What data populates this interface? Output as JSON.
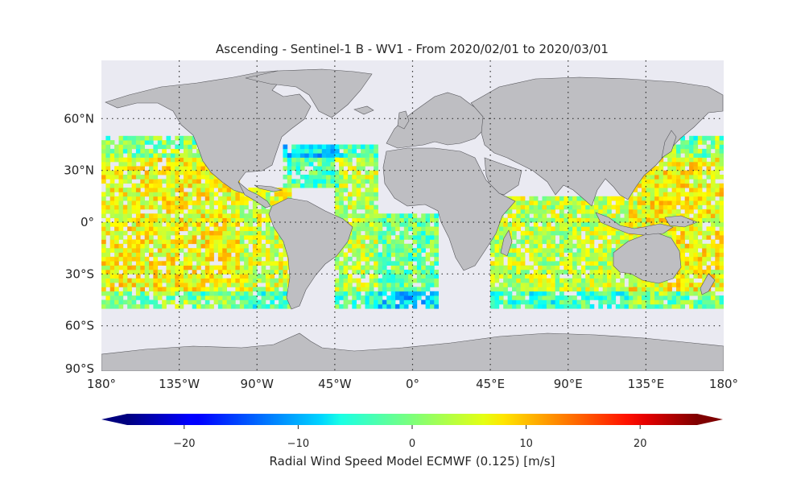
{
  "title": "Ascending - Sentinel-1 B - WV1 - From 2020/02/01 to 2020/03/01",
  "map": {
    "projection": "plate-carree",
    "lon_range": [
      -180,
      180
    ],
    "lat_range": [
      -90,
      90
    ],
    "ocean_color": "#eaeaf2",
    "land_color": "#bebec2",
    "gridlines": "dotted",
    "lon_ticks": [
      {
        "value": -180,
        "label": "180°"
      },
      {
        "value": -135,
        "label": "135°W"
      },
      {
        "value": -90,
        "label": "90°W"
      },
      {
        "value": -45,
        "label": "45°W"
      },
      {
        "value": 0,
        "label": "0°"
      },
      {
        "value": 45,
        "label": "45°E"
      },
      {
        "value": 90,
        "label": "90°E"
      },
      {
        "value": 135,
        "label": "135°E"
      },
      {
        "value": 180,
        "label": "180°"
      }
    ],
    "lat_ticks": [
      {
        "value": 60,
        "label": "60°N"
      },
      {
        "value": 30,
        "label": "30°N"
      },
      {
        "value": 0,
        "label": "0°"
      },
      {
        "value": -30,
        "label": "30°S"
      },
      {
        "value": -60,
        "label": "60°S"
      },
      {
        "value": -90,
        "label": "90°S"
      }
    ]
  },
  "chart_data": {
    "type": "heatmap",
    "variable": "Radial Wind Speed Model ECMWF (0.125) [m/s]",
    "colormap": "jet",
    "vmin": -25,
    "vmax": 25,
    "coverage_lat": [
      -50,
      50
    ],
    "regions": [
      {
        "lon": [
          -180,
          -100
        ],
        "lat": [
          -50,
          50
        ],
        "mean": 6
      },
      {
        "lon": [
          -100,
          -70
        ],
        "lat": [
          -50,
          18
        ],
        "mean": 4
      },
      {
        "lon": [
          -75,
          -40
        ],
        "lat": [
          20,
          45
        ],
        "mean": -2
      },
      {
        "lon": [
          -45,
          -20
        ],
        "lat": [
          -50,
          45
        ],
        "mean": 3
      },
      {
        "lon": [
          -20,
          15
        ],
        "lat": [
          -50,
          5
        ],
        "mean": -1
      },
      {
        "lon": [
          45,
          145
        ],
        "lat": [
          -50,
          15
        ],
        "mean": 3
      },
      {
        "lon": [
          125,
          180
        ],
        "lat": [
          -50,
          50
        ],
        "mean": 6
      }
    ]
  },
  "colorbar": {
    "label": "Radial Wind Speed Model ECMWF (0.125) [m/s]",
    "extend": "both",
    "ticks": [
      {
        "value": -20,
        "label": "−20"
      },
      {
        "value": -10,
        "label": "−10"
      },
      {
        "value": 0,
        "label": "0"
      },
      {
        "value": 10,
        "label": "10"
      },
      {
        "value": 20,
        "label": "20"
      }
    ]
  }
}
